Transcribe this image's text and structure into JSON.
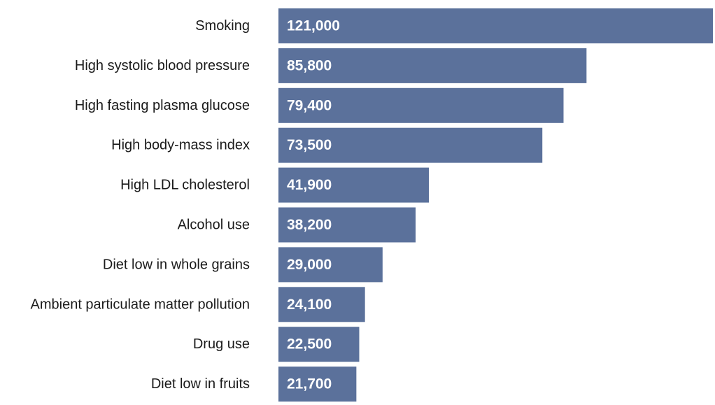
{
  "colors": {
    "bar": "#5b719b",
    "label_text": "#1a1a1a",
    "value_text": "#ffffff",
    "background": "#ffffff"
  },
  "chart_data": {
    "type": "bar",
    "orientation": "horizontal",
    "title": "",
    "xlabel": "",
    "ylabel": "",
    "xlim": [
      0,
      121000
    ],
    "grid": false,
    "legend": "none",
    "categories": [
      "Smoking",
      "High systolic blood pressure",
      "High fasting plasma glucose",
      "High body-mass index",
      "High LDL cholesterol",
      "Alcohol use",
      "Diet low in whole grains",
      "Ambient particulate matter pollution",
      "Drug use",
      "Diet low in fruits"
    ],
    "values": [
      121000,
      85800,
      79400,
      73500,
      41900,
      38200,
      29000,
      24100,
      22500,
      21700
    ],
    "value_labels": [
      "121,000",
      "85,800",
      "79,400",
      "73,500",
      "41,900",
      "38,200",
      "29,000",
      "24,100",
      "22,500",
      "21,700"
    ]
  }
}
